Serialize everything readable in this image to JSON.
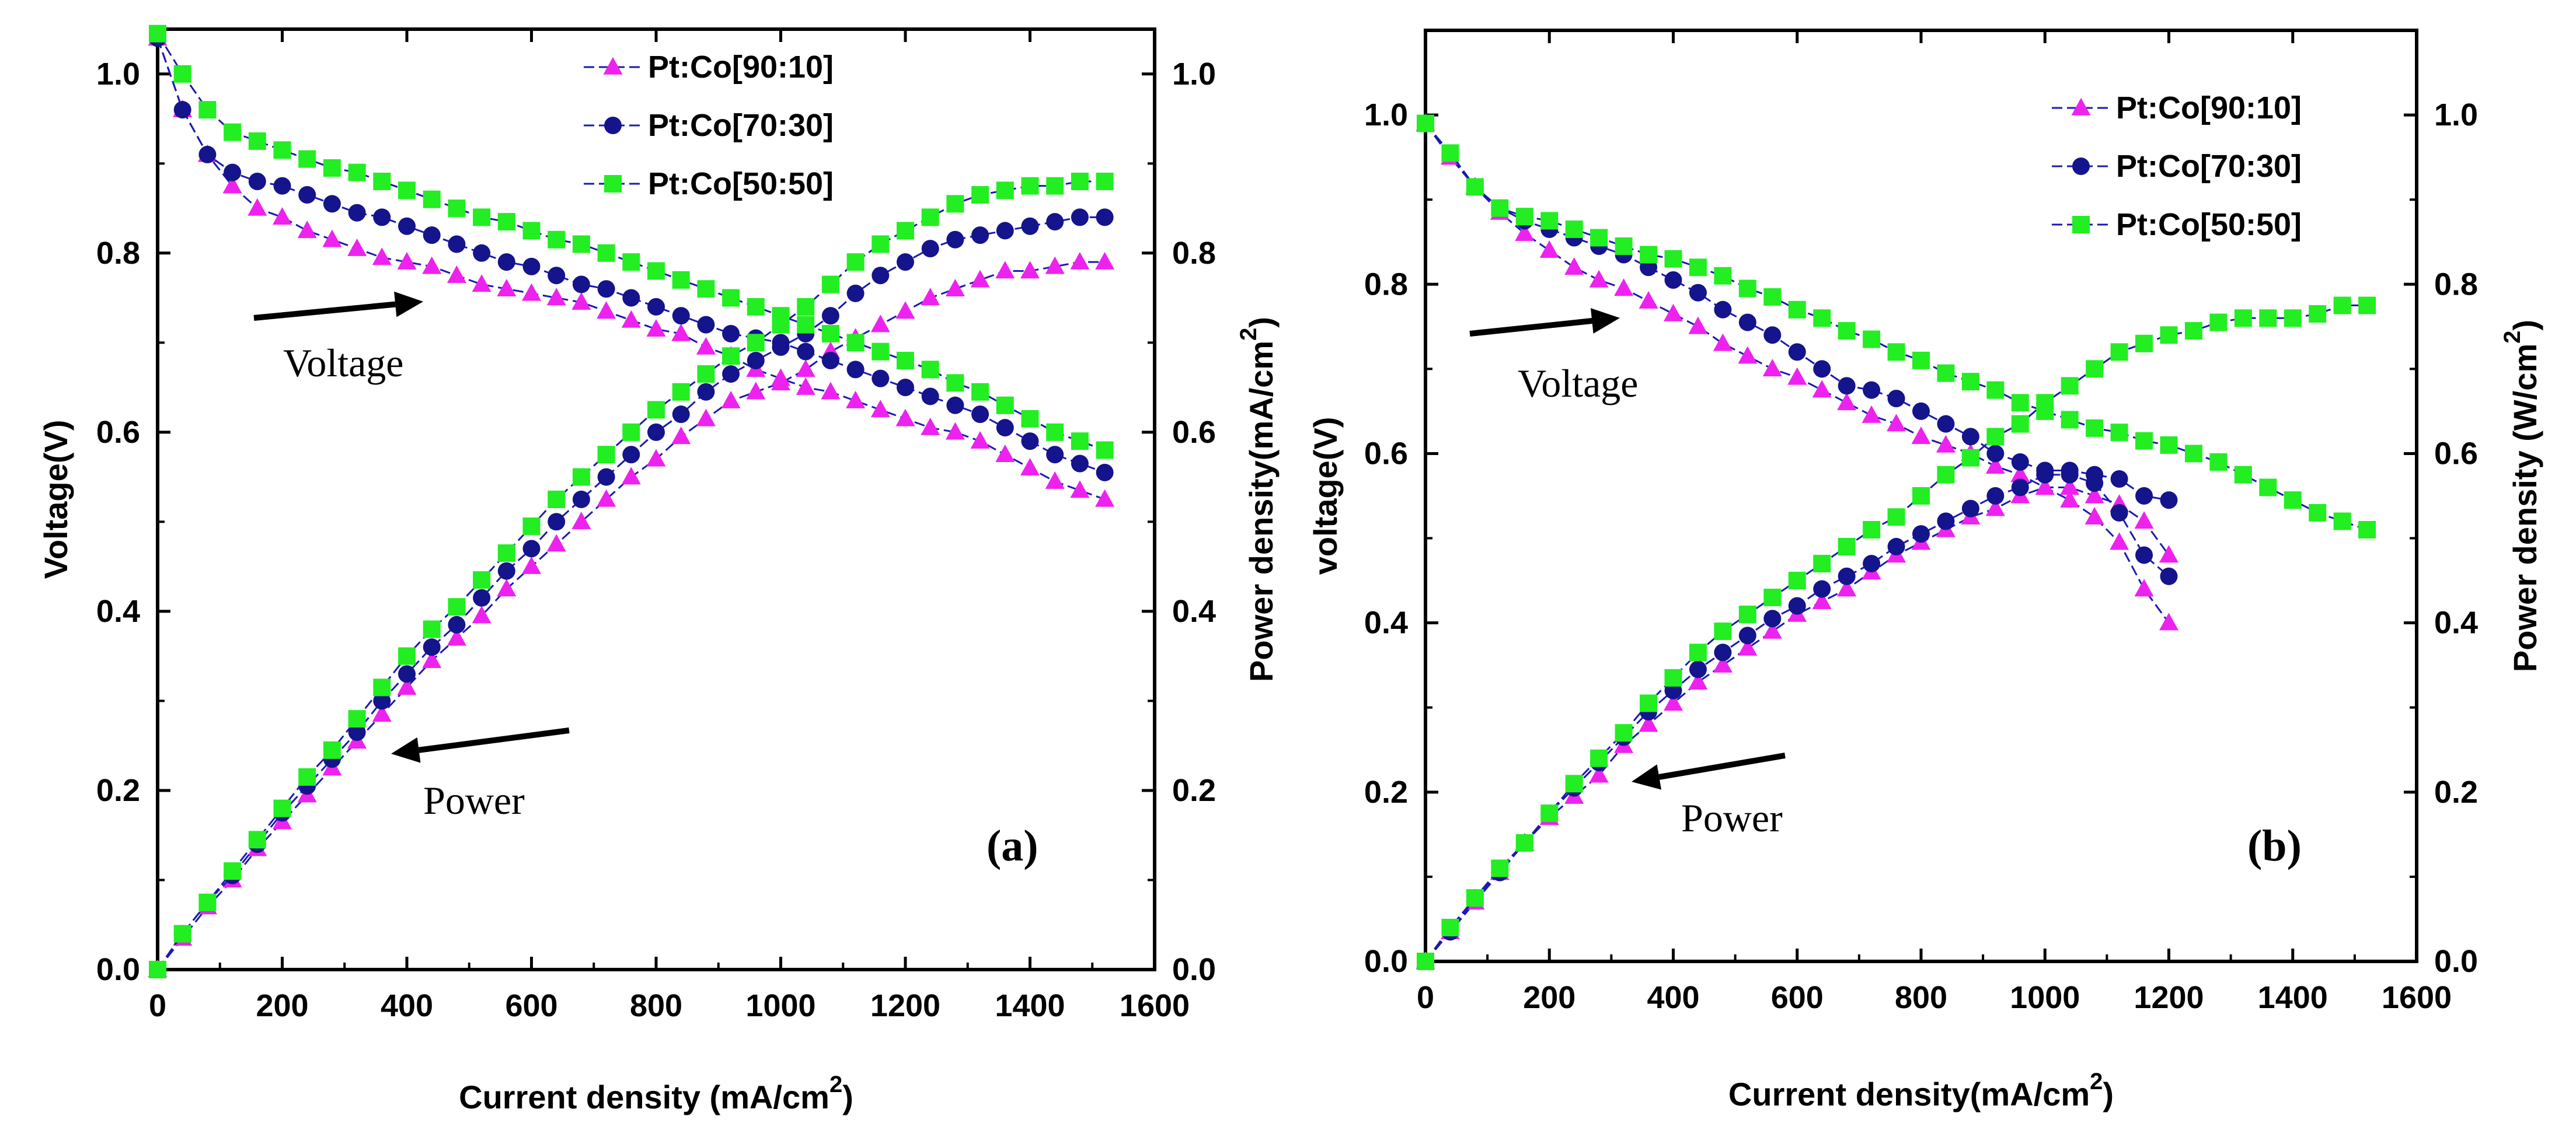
{
  "chart_data": [
    {
      "type": "line",
      "panel_label": "(a)",
      "xlabel": "Current density (mA/cm",
      "xlabel_sup": "2",
      "xlabel_tail": ")",
      "ylabel": "Voltage(V)",
      "y2label": "Power density(mA/cm",
      "y2label_sup": "2",
      "y2label_tail": ")",
      "xlim": [
        0,
        1600
      ],
      "ylim": [
        0,
        1.05
      ],
      "y2lim": [
        0,
        1.05
      ],
      "xticks": [
        "0",
        "200",
        "400",
        "600",
        "800",
        "1000",
        "1200",
        "1400",
        "1600"
      ],
      "yticks": [
        "0.0",
        "0.2",
        "0.4",
        "0.6",
        "0.8",
        "1.0"
      ],
      "y2ticks": [
        "0.0",
        "0.2",
        "0.4",
        "0.6",
        "0.8",
        "1.0"
      ],
      "legend_position": "top-center",
      "annotations": [
        "Voltage",
        "Power"
      ],
      "x": [
        0,
        40,
        80,
        120,
        160,
        200,
        240,
        280,
        320,
        360,
        400,
        440,
        480,
        520,
        560,
        600,
        640,
        680,
        720,
        760,
        800,
        840,
        880,
        920,
        960,
        1000,
        1040,
        1080,
        1120,
        1160,
        1200,
        1240,
        1280,
        1320,
        1360,
        1400,
        1440,
        1480,
        1520
      ],
      "series": [
        {
          "name": "Pt:Co[90:10]",
          "marker": "triangle",
          "color": "#ee22ee",
          "voltage": [
            1.04,
            0.96,
            0.91,
            0.875,
            0.85,
            0.84,
            0.825,
            0.815,
            0.805,
            0.795,
            0.79,
            0.785,
            0.775,
            0.765,
            0.76,
            0.755,
            0.75,
            0.745,
            0.735,
            0.725,
            0.715,
            0.71,
            0.695,
            0.685,
            0.67,
            0.66,
            0.65,
            0.645,
            0.635,
            0.625,
            0.615,
            0.605,
            0.6,
            0.59,
            0.575,
            0.56,
            0.545,
            0.535,
            0.525
          ],
          "power": [
            0.0,
            0.035,
            0.07,
            0.1,
            0.135,
            0.165,
            0.195,
            0.225,
            0.255,
            0.285,
            0.315,
            0.345,
            0.37,
            0.395,
            0.425,
            0.45,
            0.475,
            0.5,
            0.525,
            0.55,
            0.57,
            0.595,
            0.615,
            0.635,
            0.645,
            0.655,
            0.67,
            0.69,
            0.705,
            0.72,
            0.735,
            0.75,
            0.76,
            0.77,
            0.78,
            0.78,
            0.785,
            0.79,
            0.79
          ]
        },
        {
          "name": "Pt:Co[70:30]",
          "marker": "circle",
          "color": "#14148c",
          "voltage": [
            1.04,
            0.96,
            0.91,
            0.89,
            0.88,
            0.875,
            0.865,
            0.855,
            0.845,
            0.84,
            0.83,
            0.82,
            0.81,
            0.8,
            0.79,
            0.785,
            0.775,
            0.765,
            0.76,
            0.75,
            0.74,
            0.73,
            0.72,
            0.71,
            0.705,
            0.7,
            0.69,
            0.68,
            0.67,
            0.66,
            0.65,
            0.64,
            0.63,
            0.62,
            0.605,
            0.59,
            0.575,
            0.565,
            0.555
          ],
          "power": [
            0.0,
            0.04,
            0.075,
            0.105,
            0.14,
            0.175,
            0.205,
            0.235,
            0.265,
            0.3,
            0.33,
            0.36,
            0.385,
            0.415,
            0.445,
            0.47,
            0.5,
            0.525,
            0.55,
            0.575,
            0.6,
            0.62,
            0.645,
            0.665,
            0.68,
            0.695,
            0.71,
            0.73,
            0.755,
            0.775,
            0.79,
            0.805,
            0.815,
            0.82,
            0.825,
            0.83,
            0.835,
            0.84,
            0.84
          ]
        },
        {
          "name": "Pt:Co[50:50]",
          "marker": "square",
          "color": "#22ee22",
          "voltage": [
            1.045,
            1.0,
            0.96,
            0.935,
            0.925,
            0.915,
            0.905,
            0.895,
            0.89,
            0.88,
            0.87,
            0.86,
            0.85,
            0.84,
            0.835,
            0.825,
            0.815,
            0.81,
            0.8,
            0.79,
            0.78,
            0.77,
            0.76,
            0.75,
            0.74,
            0.73,
            0.72,
            0.71,
            0.7,
            0.69,
            0.68,
            0.67,
            0.655,
            0.645,
            0.63,
            0.615,
            0.6,
            0.59,
            0.58
          ],
          "power": [
            0.0,
            0.04,
            0.075,
            0.11,
            0.145,
            0.18,
            0.215,
            0.245,
            0.28,
            0.315,
            0.35,
            0.38,
            0.405,
            0.435,
            0.465,
            0.495,
            0.525,
            0.55,
            0.575,
            0.6,
            0.625,
            0.645,
            0.665,
            0.685,
            0.7,
            0.72,
            0.74,
            0.765,
            0.79,
            0.81,
            0.825,
            0.84,
            0.855,
            0.865,
            0.87,
            0.875,
            0.875,
            0.88,
            0.88
          ]
        }
      ]
    },
    {
      "type": "line",
      "panel_label": "(b)",
      "xlabel": "Current density(mA/cm",
      "xlabel_sup": "2",
      "xlabel_tail": ")",
      "ylabel": "voltage(V)",
      "y2label": "Power density (W/cm",
      "y2label_sup": "2",
      "y2label_tail": ")",
      "xlim": [
        0,
        1600
      ],
      "ylim": [
        0,
        1.1
      ],
      "y2lim": [
        0,
        1.1
      ],
      "xticks": [
        "0",
        "200",
        "400",
        "600",
        "800",
        "1000",
        "1200",
        "1400",
        "1600"
      ],
      "yticks": [
        "0.0",
        "0.2",
        "0.4",
        "0.6",
        "0.8",
        "1.0"
      ],
      "y2ticks": [
        "0.0",
        "0.2",
        "0.4",
        "0.6",
        "0.8",
        "1.0"
      ],
      "legend_position": "top-right",
      "annotations": [
        "Voltage",
        "Power"
      ],
      "series": [
        {
          "name": "Pt:Co[90:10]",
          "marker": "triangle",
          "color": "#ee22ee",
          "x": [
            0,
            40,
            80,
            120,
            160,
            200,
            240,
            280,
            320,
            360,
            400,
            440,
            480,
            520,
            560,
            600,
            640,
            680,
            720,
            760,
            800,
            840,
            880,
            920,
            960,
            1000,
            1040,
            1080,
            1120,
            1160,
            1200
          ],
          "voltage": [
            0.99,
            0.95,
            0.915,
            0.885,
            0.86,
            0.84,
            0.82,
            0.805,
            0.795,
            0.78,
            0.765,
            0.75,
            0.73,
            0.715,
            0.7,
            0.69,
            0.675,
            0.66,
            0.645,
            0.635,
            0.62,
            0.61,
            0.6,
            0.585,
            0.575,
            0.56,
            0.545,
            0.525,
            0.495,
            0.44,
            0.4
          ],
          "power": [
            0.0,
            0.035,
            0.07,
            0.105,
            0.14,
            0.17,
            0.195,
            0.22,
            0.255,
            0.28,
            0.305,
            0.33,
            0.35,
            0.37,
            0.39,
            0.41,
            0.425,
            0.44,
            0.46,
            0.48,
            0.495,
            0.51,
            0.525,
            0.535,
            0.55,
            0.56,
            0.56,
            0.55,
            0.54,
            0.52,
            0.48
          ]
        },
        {
          "name": "Pt:Co[70:30]",
          "marker": "circle",
          "color": "#14148c",
          "x": [
            0,
            40,
            80,
            120,
            160,
            200,
            240,
            280,
            320,
            360,
            400,
            440,
            480,
            520,
            560,
            600,
            640,
            680,
            720,
            760,
            800,
            840,
            880,
            920,
            960,
            1000,
            1040,
            1080,
            1120,
            1160,
            1200
          ],
          "voltage": [
            0.99,
            0.955,
            0.915,
            0.89,
            0.875,
            0.865,
            0.855,
            0.845,
            0.835,
            0.82,
            0.805,
            0.79,
            0.77,
            0.755,
            0.74,
            0.72,
            0.7,
            0.68,
            0.675,
            0.665,
            0.65,
            0.635,
            0.62,
            0.6,
            0.59,
            0.58,
            0.58,
            0.575,
            0.57,
            0.55,
            0.545
          ],
          "power": [
            0.0,
            0.035,
            0.075,
            0.105,
            0.14,
            0.175,
            0.205,
            0.235,
            0.265,
            0.295,
            0.32,
            0.345,
            0.365,
            0.385,
            0.405,
            0.42,
            0.44,
            0.455,
            0.47,
            0.49,
            0.505,
            0.52,
            0.535,
            0.55,
            0.56,
            0.575,
            0.575,
            0.565,
            0.53,
            0.48,
            0.455
          ]
        },
        {
          "name": "Pt:Co[50:50]",
          "marker": "square",
          "color": "#22ee22",
          "x": [
            0,
            40,
            80,
            120,
            160,
            200,
            240,
            280,
            320,
            360,
            400,
            440,
            480,
            520,
            560,
            600,
            640,
            680,
            720,
            760,
            800,
            840,
            880,
            920,
            960,
            1000,
            1040,
            1080,
            1120,
            1160,
            1200,
            1240,
            1280,
            1320,
            1360,
            1400,
            1440,
            1480,
            1520
          ],
          "voltage": [
            0.99,
            0.955,
            0.915,
            0.89,
            0.88,
            0.875,
            0.865,
            0.855,
            0.845,
            0.835,
            0.83,
            0.82,
            0.81,
            0.795,
            0.785,
            0.77,
            0.76,
            0.745,
            0.735,
            0.72,
            0.71,
            0.695,
            0.685,
            0.675,
            0.66,
            0.65,
            0.64,
            0.63,
            0.625,
            0.615,
            0.61,
            0.6,
            0.59,
            0.575,
            0.56,
            0.545,
            0.53,
            0.52,
            0.51
          ],
          "power": [
            0.0,
            0.04,
            0.075,
            0.11,
            0.14,
            0.175,
            0.21,
            0.24,
            0.27,
            0.305,
            0.335,
            0.365,
            0.39,
            0.41,
            0.43,
            0.45,
            0.47,
            0.49,
            0.51,
            0.525,
            0.55,
            0.575,
            0.595,
            0.62,
            0.635,
            0.66,
            0.68,
            0.7,
            0.72,
            0.73,
            0.74,
            0.745,
            0.755,
            0.76,
            0.76,
            0.76,
            0.765,
            0.775,
            0.775
          ]
        }
      ]
    }
  ]
}
